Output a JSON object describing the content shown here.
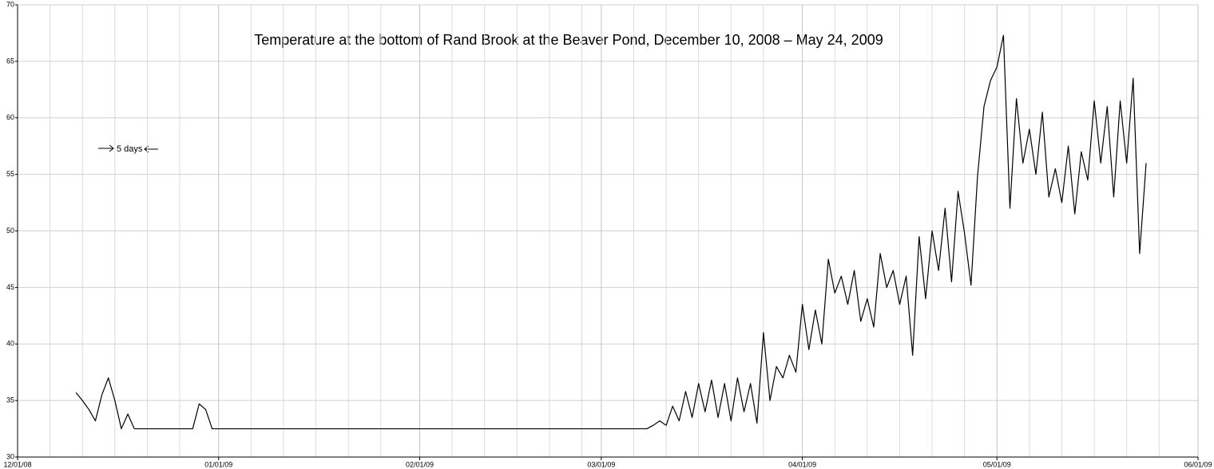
{
  "chart_data": {
    "type": "line",
    "title": "Temperature at the bottom of Rand Brook at the Beaver Pond, December 10, 2008 – May 24, 2009",
    "annotation": "5 days",
    "color": "#000000",
    "grid": true,
    "ylim": [
      30,
      70
    ],
    "yticks": [
      30,
      35,
      40,
      45,
      50,
      55,
      60,
      65,
      70
    ],
    "xlim": [
      "12/01/08",
      "06/01/09"
    ],
    "xticks": [
      "12/01/08",
      "01/01/09",
      "02/01/09",
      "03/01/09",
      "04/01/09",
      "05/01/09",
      "06/01/09"
    ],
    "xminorticks": [
      "12/06/08",
      "12/11/08",
      "12/16/08",
      "12/21/08",
      "12/26/08",
      "01/06/09",
      "01/11/09",
      "01/16/09",
      "01/21/09",
      "01/26/09",
      "02/06/09",
      "02/11/09",
      "02/16/09",
      "02/21/09",
      "02/26/09",
      "03/06/09",
      "03/11/09",
      "03/16/09",
      "03/21/09",
      "03/26/09",
      "04/06/09",
      "04/11/09",
      "04/16/09",
      "04/21/09",
      "04/26/09",
      "05/06/09",
      "05/11/09",
      "05/16/09",
      "05/21/09",
      "05/26/09"
    ],
    "x": [
      "12/10/08",
      "12/11/08",
      "12/12/08",
      "12/13/08",
      "12/14/08",
      "12/15/08",
      "12/16/08",
      "12/17/08",
      "12/18/08",
      "12/19/08",
      "12/20/08",
      "12/21/08",
      "12/22/08",
      "12/23/08",
      "12/24/08",
      "12/25/08",
      "12/26/08",
      "12/27/08",
      "12/28/08",
      "12/29/08",
      "12/30/08",
      "12/31/08",
      "01/01/09",
      "01/02/09",
      "01/03/09",
      "01/04/09",
      "01/05/09",
      "01/06/09",
      "01/07/09",
      "01/08/09",
      "01/09/09",
      "01/10/09",
      "01/11/09",
      "01/12/09",
      "01/13/09",
      "01/14/09",
      "01/15/09",
      "01/16/09",
      "01/17/09",
      "01/18/09",
      "01/19/09",
      "01/20/09",
      "01/21/09",
      "01/22/09",
      "01/23/09",
      "01/24/09",
      "01/25/09",
      "01/26/09",
      "01/27/09",
      "01/28/09",
      "01/29/09",
      "01/30/09",
      "01/31/09",
      "02/01/09",
      "02/02/09",
      "02/03/09",
      "02/04/09",
      "02/05/09",
      "02/06/09",
      "02/07/09",
      "02/08/09",
      "02/09/09",
      "02/10/09",
      "02/11/09",
      "02/12/09",
      "02/13/09",
      "02/14/09",
      "02/15/09",
      "02/16/09",
      "02/17/09",
      "02/18/09",
      "02/19/09",
      "02/20/09",
      "02/21/09",
      "02/22/09",
      "02/23/09",
      "02/24/09",
      "02/25/09",
      "02/26/09",
      "02/27/09",
      "02/28/09",
      "03/01/09",
      "03/02/09",
      "03/03/09",
      "03/04/09",
      "03/05/09",
      "03/06/09",
      "03/07/09",
      "03/08/09",
      "03/09/09",
      "03/10/09",
      "03/11/09",
      "03/12/09",
      "03/13/09",
      "03/14/09",
      "03/15/09",
      "03/16/09",
      "03/17/09",
      "03/18/09",
      "03/19/09",
      "03/20/09",
      "03/21/09",
      "03/22/09",
      "03/23/09",
      "03/24/09",
      "03/25/09",
      "03/26/09",
      "03/27/09",
      "03/28/09",
      "03/29/09",
      "03/30/09",
      "03/31/09",
      "04/01/09",
      "04/02/09",
      "04/03/09",
      "04/04/09",
      "04/05/09",
      "04/06/09",
      "04/07/09",
      "04/08/09",
      "04/09/09",
      "04/10/09",
      "04/11/09",
      "04/12/09",
      "04/13/09",
      "04/14/09",
      "04/15/09",
      "04/16/09",
      "04/17/09",
      "04/18/09",
      "04/19/09",
      "04/20/09",
      "04/21/09",
      "04/22/09",
      "04/23/09",
      "04/24/09",
      "04/25/09",
      "04/26/09",
      "04/27/09",
      "04/28/09",
      "04/29/09",
      "04/30/09",
      "05/01/09",
      "05/02/09",
      "05/03/09",
      "05/04/09",
      "05/05/09",
      "05/06/09",
      "05/07/09",
      "05/08/09",
      "05/09/09",
      "05/10/09",
      "05/11/09",
      "05/12/09",
      "05/13/09",
      "05/14/09",
      "05/15/09",
      "05/16/09",
      "05/17/09",
      "05/18/09",
      "05/19/09",
      "05/20/09",
      "05/21/09",
      "05/22/09",
      "05/23/09",
      "05/24/09"
    ],
    "values": [
      35.7,
      35,
      34.2,
      33.2,
      35.5,
      37,
      35,
      32.5,
      33.8,
      32.5,
      32.5,
      32.5,
      32.5,
      32.5,
      32.5,
      32.5,
      32.5,
      32.5,
      32.5,
      34.7,
      34.2,
      32.5,
      32.5,
      32.5,
      32.5,
      32.5,
      32.5,
      32.5,
      32.5,
      32.5,
      32.5,
      32.5,
      32.5,
      32.5,
      32.5,
      32.5,
      32.5,
      32.5,
      32.5,
      32.5,
      32.5,
      32.5,
      32.5,
      32.5,
      32.5,
      32.5,
      32.5,
      32.5,
      32.5,
      32.5,
      32.5,
      32.5,
      32.5,
      32.5,
      32.5,
      32.5,
      32.5,
      32.5,
      32.5,
      32.5,
      32.5,
      32.5,
      32.5,
      32.5,
      32.5,
      32.5,
      32.5,
      32.5,
      32.5,
      32.5,
      32.5,
      32.5,
      32.5,
      32.5,
      32.5,
      32.5,
      32.5,
      32.5,
      32.5,
      32.5,
      32.5,
      32.5,
      32.5,
      32.5,
      32.5,
      32.5,
      32.5,
      32.5,
      32.5,
      32.8,
      33.2,
      32.8,
      34.5,
      33.2,
      35.8,
      33.5,
      36.5,
      34,
      36.8,
      33.5,
      36.5,
      33.2,
      37,
      34,
      36.5,
      33,
      41,
      35,
      38,
      37,
      39,
      37.5,
      43.5,
      39.5,
      43,
      40,
      47.5,
      44.5,
      46,
      43.5,
      46.5,
      42,
      44,
      41.5,
      48,
      45,
      46.5,
      43.5,
      46,
      39,
      49.5,
      44,
      50,
      46.5,
      52,
      45.5,
      53.5,
      49.8,
      45.2,
      54.8,
      61,
      63.3,
      64.5,
      67.3,
      52,
      61.7,
      56,
      59,
      55,
      60.5,
      53,
      55.5,
      52.5,
      57.5,
      51.5,
      57,
      54.5,
      61.5,
      56,
      61,
      53,
      61.5,
      56,
      63.5,
      48,
      56
    ]
  }
}
